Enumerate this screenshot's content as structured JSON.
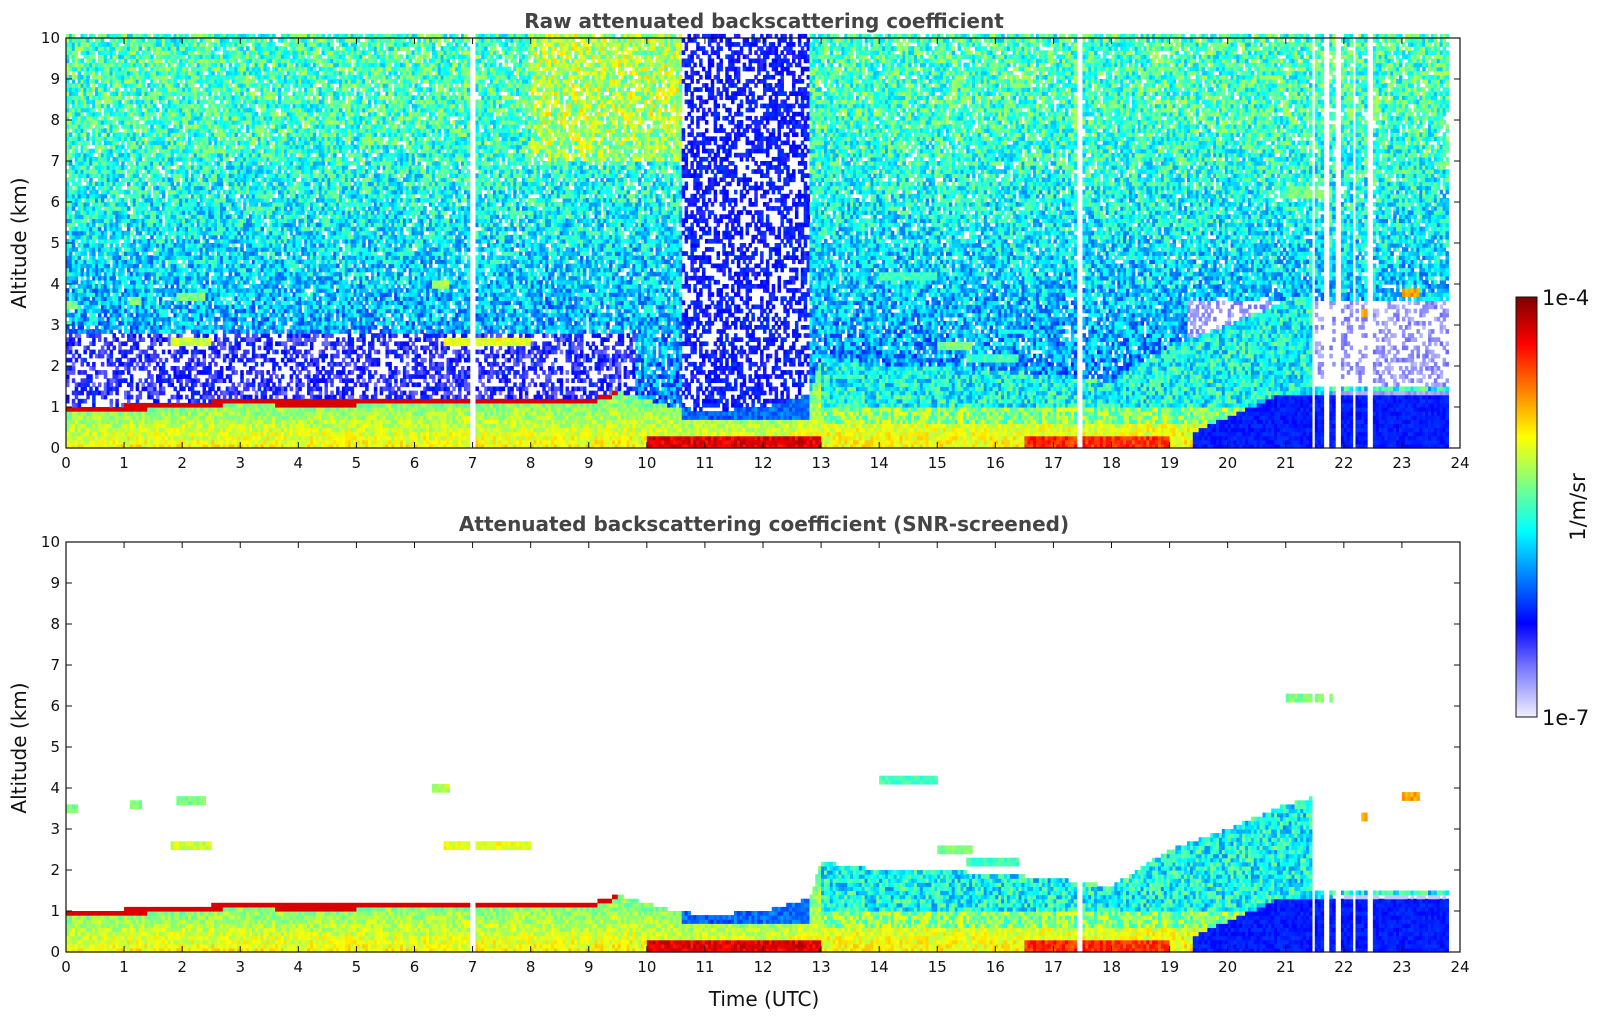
{
  "chart_data": [
    {
      "type": "heatmap",
      "title": "Raw attenuated backscattering coefficient",
      "xlabel": "",
      "ylabel": "Altitude (km)",
      "xlim": [
        0,
        24
      ],
      "ylim": [
        0,
        10
      ],
      "x_ticks": [
        "0",
        "1",
        "2",
        "3",
        "4",
        "5",
        "6",
        "7",
        "8",
        "9",
        "10",
        "11",
        "12",
        "13",
        "14",
        "15",
        "16",
        "17",
        "18",
        "19",
        "20",
        "21",
        "22",
        "23",
        "24"
      ],
      "y_ticks": [
        "0",
        "1",
        "2",
        "3",
        "4",
        "5",
        "6",
        "7",
        "8",
        "9",
        "10"
      ],
      "data_end_time": 23.8,
      "data_gaps_utc": [
        [
          6.96,
          7.06
        ],
        [
          17.38,
          17.52
        ],
        [
          21.47,
          21.52
        ],
        [
          21.66,
          21.75
        ],
        [
          21.86,
          21.95
        ],
        [
          22.13,
          22.22
        ],
        [
          22.4,
          22.49
        ]
      ],
      "boundary_layer_top_km": [
        {
          "t": 0,
          "h": 1.0
        },
        {
          "t": 2,
          "h": 1.1
        },
        {
          "t": 3,
          "h": 1.2
        },
        {
          "t": 4,
          "h": 1.15
        },
        {
          "t": 6.5,
          "h": 1.2
        },
        {
          "t": 7,
          "h": 1.2
        },
        {
          "t": 9,
          "h": 1.2
        },
        {
          "t": 9.5,
          "h": 1.4
        },
        {
          "t": 10.5,
          "h": 1.0
        },
        {
          "t": 11,
          "h": 0.9
        },
        {
          "t": 12,
          "h": 1.0
        },
        {
          "t": 12.8,
          "h": 1.3
        },
        {
          "t": 13,
          "h": 2.2
        },
        {
          "t": 14,
          "h": 2.0
        },
        {
          "t": 15,
          "h": 2.0
        },
        {
          "t": 16,
          "h": 1.9
        },
        {
          "t": 17,
          "h": 1.8
        },
        {
          "t": 18,
          "h": 1.6
        },
        {
          "t": 19,
          "h": 2.5
        },
        {
          "t": 20,
          "h": 3.0
        },
        {
          "t": 21,
          "h": 3.6
        },
        {
          "t": 21.5,
          "h": 3.8
        }
      ],
      "elevated_layers": [
        {
          "t0": 0.0,
          "t1": 0.2,
          "h": 3.5,
          "level": 0.55
        },
        {
          "t0": 1.1,
          "t1": 1.3,
          "h": 3.6,
          "level": 0.55
        },
        {
          "t0": 1.9,
          "t1": 2.4,
          "h": 3.7,
          "level": 0.55
        },
        {
          "t0": 1.8,
          "t1": 2.5,
          "h": 2.6,
          "level": 0.62
        },
        {
          "t0": 6.3,
          "t1": 6.6,
          "h": 4.0,
          "level": 0.6
        },
        {
          "t0": 6.5,
          "t1": 8.0,
          "h": 2.6,
          "level": 0.65
        },
        {
          "t0": 14.0,
          "t1": 15.0,
          "h": 4.2,
          "level": 0.5
        },
        {
          "t0": 15.0,
          "t1": 15.6,
          "h": 2.5,
          "level": 0.55
        },
        {
          "t0": 15.5,
          "t1": 16.4,
          "h": 2.2,
          "level": 0.5
        },
        {
          "t0": 21.0,
          "t1": 21.8,
          "h": 6.2,
          "level": 0.55
        },
        {
          "t0": 22.3,
          "t1": 22.5,
          "h": 3.3,
          "level": 0.72
        },
        {
          "t0": 23.0,
          "t1": 23.3,
          "h": 3.8,
          "level": 0.75
        }
      ]
    },
    {
      "type": "heatmap",
      "title": "Attenuated backscattering coefficient (SNR-screened)",
      "xlabel": "Time (UTC)",
      "ylabel": "Altitude (km)",
      "xlim": [
        0,
        24
      ],
      "ylim": [
        0,
        10
      ],
      "x_ticks": [
        "0",
        "1",
        "2",
        "3",
        "4",
        "5",
        "6",
        "7",
        "8",
        "9",
        "10",
        "11",
        "12",
        "13",
        "14",
        "15",
        "16",
        "17",
        "18",
        "19",
        "20",
        "21",
        "22",
        "23",
        "24"
      ],
      "y_ticks": [
        "0",
        "1",
        "2",
        "3",
        "4",
        "5",
        "6",
        "7",
        "8",
        "9",
        "10"
      ],
      "screening": "SNR-screened; background noise above aerosol layers removed"
    }
  ],
  "colorbar": {
    "label": "1/m/sr",
    "max_label": "1e-4",
    "min_label": "1e-7",
    "scale": "log",
    "colormap": [
      "#f0f0ff",
      "#7f7fff",
      "#0000ff",
      "#0080ff",
      "#00ffff",
      "#80ff80",
      "#ffff00",
      "#ff8000",
      "#ff0000",
      "#800000"
    ]
  }
}
